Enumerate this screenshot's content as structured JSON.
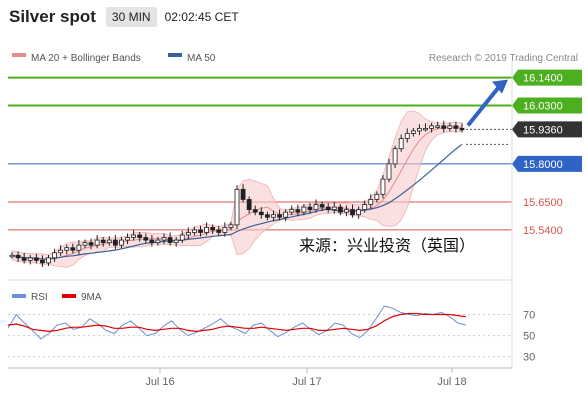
{
  "header": {
    "symbol": "Silver spot",
    "interval": "30 MIN",
    "time": "02:02:45 CET"
  },
  "legend": {
    "items": [
      {
        "label": "MA 20 + Bollinger Bands",
        "color": "#e88a8a"
      },
      {
        "label": "MA 50",
        "color": "#3a5f9a"
      }
    ],
    "watermark": "Research © 2019 Trading Central"
  },
  "rsi_legend": {
    "items": [
      {
        "label": "RSI",
        "color": "#6d8fd6"
      },
      {
        "label": "9MA",
        "color": "#e00000"
      }
    ]
  },
  "annotation": "来源：兴业投资（英国）",
  "chart_data": [
    {
      "type": "line",
      "panel": "price",
      "price_scale": {
        "min": 15.39,
        "max": 16.17
      },
      "levels": [
        {
          "value": 16.14,
          "label": "16.1400",
          "kind": "resistance",
          "color": "#4caf1f"
        },
        {
          "value": 16.03,
          "label": "16.0300",
          "kind": "resistance",
          "color": "#4caf1f"
        },
        {
          "value": 15.936,
          "label": "15.9360",
          "kind": "last-price",
          "color": "#333333"
        },
        {
          "value": 15.8,
          "label": "15.8000",
          "kind": "pivot",
          "color": "#2f63c6"
        },
        {
          "value": 15.65,
          "label": "15.6500",
          "kind": "support",
          "color": "#d9534f"
        },
        {
          "value": 15.54,
          "label": "15.5400",
          "kind": "support",
          "color": "#d9534f"
        }
      ],
      "x_tick_labels": [
        "Jul 16",
        "Jul 17",
        "Jul 18"
      ],
      "price_path": [
        15.44,
        15.43,
        15.42,
        15.43,
        15.42,
        15.41,
        15.43,
        15.45,
        15.46,
        15.47,
        15.46,
        15.48,
        15.49,
        15.48,
        15.5,
        15.49,
        15.5,
        15.48,
        15.5,
        15.51,
        15.52,
        15.51,
        15.5,
        15.49,
        15.5,
        15.51,
        15.49,
        15.5,
        15.52,
        15.53,
        15.54,
        15.53,
        15.55,
        15.54,
        15.53,
        15.55,
        15.56,
        15.7,
        15.66,
        15.62,
        15.61,
        15.6,
        15.59,
        15.6,
        15.59,
        15.61,
        15.62,
        15.61,
        15.63,
        15.62,
        15.64,
        15.63,
        15.62,
        15.63,
        15.61,
        15.62,
        15.6,
        15.62,
        15.64,
        15.66,
        15.68,
        15.74,
        15.8,
        15.86,
        15.9,
        15.92,
        15.93,
        15.94,
        15.94,
        15.95,
        15.95,
        15.94,
        15.95,
        15.94,
        15.936
      ],
      "projection": {
        "from": 15.936,
        "to": 16.14,
        "direction": "up"
      }
    },
    {
      "type": "line",
      "panel": "rsi",
      "y_ticks": [
        70,
        50,
        30
      ],
      "series": [
        {
          "name": "RSI",
          "color": "#6d8fd6",
          "values": [
            57,
            70,
            62,
            55,
            47,
            52,
            60,
            62,
            56,
            58,
            66,
            61,
            55,
            52,
            60,
            64,
            57,
            50,
            52,
            59,
            64,
            56,
            50,
            53,
            57,
            61,
            66,
            59,
            56,
            52,
            60,
            62,
            55,
            49,
            53,
            58,
            62,
            56,
            51,
            55,
            62,
            60,
            52,
            48,
            55,
            66,
            78,
            76,
            72,
            70,
            69,
            71,
            70,
            72,
            68,
            62,
            60
          ]
        },
        {
          "name": "9MA",
          "color": "#e00000",
          "values": [
            60,
            61,
            59,
            56,
            55,
            54,
            55,
            57,
            58,
            58,
            59,
            60,
            59,
            57,
            57,
            58,
            58,
            56,
            55,
            56,
            57,
            57,
            55,
            54,
            55,
            56,
            58,
            59,
            58,
            57,
            57,
            58,
            57,
            56,
            55,
            56,
            57,
            57,
            55,
            55,
            56,
            57,
            56,
            55,
            56,
            59,
            64,
            68,
            70,
            71,
            71,
            70,
            70,
            70,
            70,
            69,
            68
          ]
        }
      ]
    }
  ]
}
